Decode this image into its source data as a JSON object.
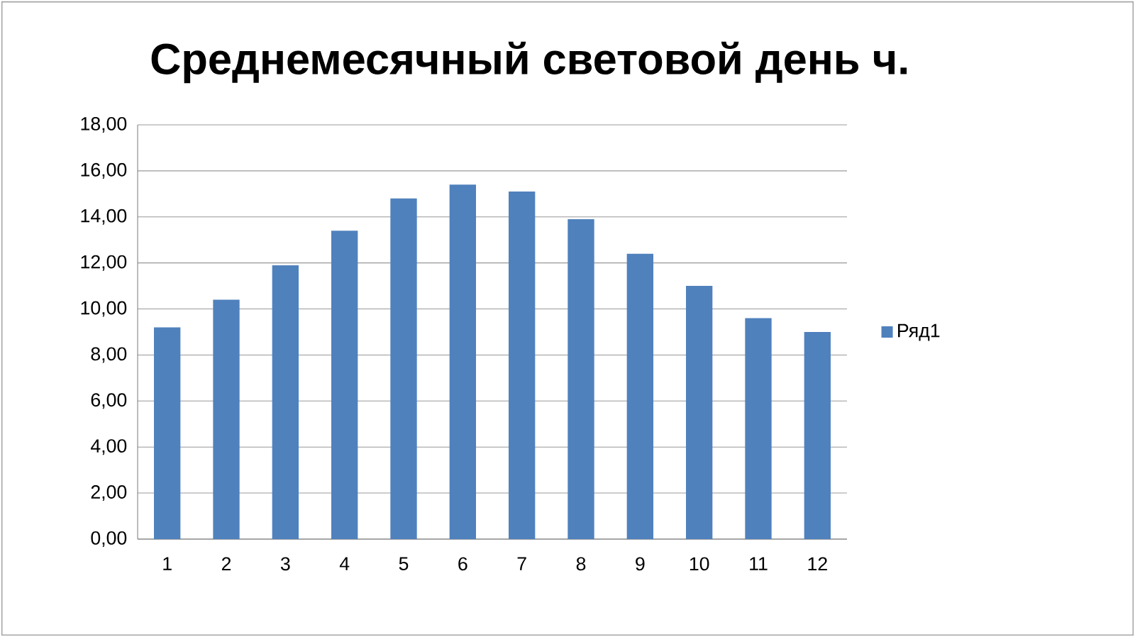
{
  "chart_data": {
    "type": "bar",
    "title": "Среднемесячный световой день ч.",
    "categories": [
      "1",
      "2",
      "3",
      "4",
      "5",
      "6",
      "7",
      "8",
      "9",
      "10",
      "11",
      "12"
    ],
    "series": [
      {
        "name": "Ряд1",
        "color": "#4f81bd",
        "values": [
          9.2,
          10.4,
          11.9,
          13.4,
          14.8,
          15.4,
          15.1,
          13.9,
          12.4,
          11.0,
          9.6,
          9.0
        ]
      }
    ],
    "ylim": [
      0,
      18
    ],
    "yticks": [
      {
        "value": 0,
        "label": "0,00"
      },
      {
        "value": 2,
        "label": "2,00"
      },
      {
        "value": 4,
        "label": "4,00"
      },
      {
        "value": 6,
        "label": "6,00"
      },
      {
        "value": 8,
        "label": "8,00"
      },
      {
        "value": 10,
        "label": "10,00"
      },
      {
        "value": 12,
        "label": "12,00"
      },
      {
        "value": 14,
        "label": "14,00"
      },
      {
        "value": 16,
        "label": "16,00"
      },
      {
        "value": 18,
        "label": "18,00"
      }
    ],
    "grid": "y",
    "legend": "right"
  }
}
